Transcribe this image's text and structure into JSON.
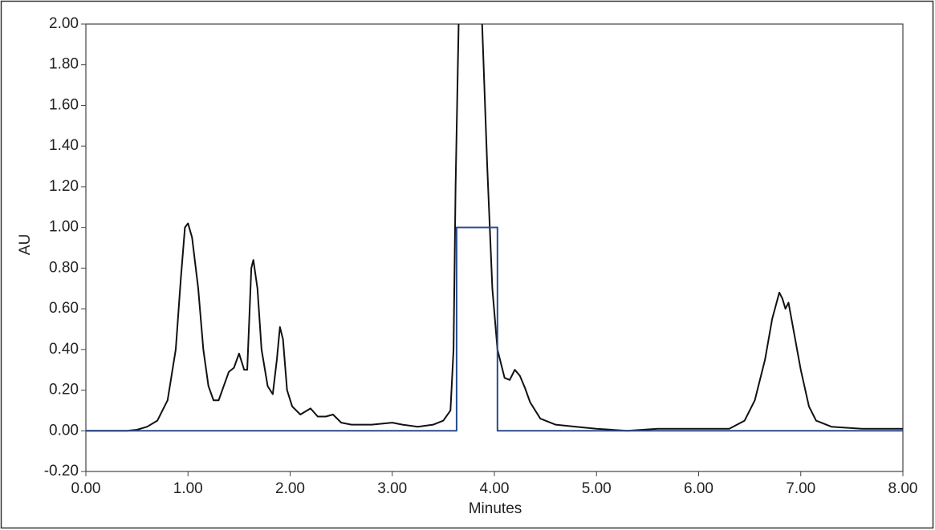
{
  "chart_data": {
    "type": "line",
    "xlabel": "Minutes",
    "ylabel": "AU",
    "xlim": [
      0,
      8
    ],
    "ylim": [
      -0.2,
      2.0
    ],
    "xticks": [
      {
        "value": 0,
        "label": "0.00"
      },
      {
        "value": 1,
        "label": "1.00"
      },
      {
        "value": 2,
        "label": "2.00"
      },
      {
        "value": 3,
        "label": "3.00"
      },
      {
        "value": 4,
        "label": "4.00"
      },
      {
        "value": 5,
        "label": "5.00"
      },
      {
        "value": 6,
        "label": "6.00"
      },
      {
        "value": 7,
        "label": "7.00"
      },
      {
        "value": 8,
        "label": "8.00"
      }
    ],
    "yticks": [
      {
        "value": -0.2,
        "label": "-0.20"
      },
      {
        "value": 0,
        "label": "0.00"
      },
      {
        "value": 0.2,
        "label": "0.20"
      },
      {
        "value": 0.4,
        "label": "0.40"
      },
      {
        "value": 0.6,
        "label": "0.60"
      },
      {
        "value": 0.8,
        "label": "0.80"
      },
      {
        "value": 1.0,
        "label": "1.00"
      },
      {
        "value": 1.2,
        "label": "1.20"
      },
      {
        "value": 1.4,
        "label": "1.40"
      },
      {
        "value": 1.6,
        "label": "1.60"
      },
      {
        "value": 1.8,
        "label": "1.80"
      },
      {
        "value": 2.0,
        "label": "2.00"
      }
    ],
    "grid": false,
    "series": [
      {
        "color": "#111111",
        "x": [
          0,
          0.4,
          0.5,
          0.6,
          0.7,
          0.8,
          0.88,
          0.93,
          0.97,
          1.0,
          1.04,
          1.1,
          1.15,
          1.2,
          1.25,
          1.3,
          1.35,
          1.4,
          1.45,
          1.5,
          1.55,
          1.58,
          1.62,
          1.64,
          1.68,
          1.72,
          1.78,
          1.83,
          1.87,
          1.9,
          1.93,
          1.97,
          2.02,
          2.1,
          2.2,
          2.27,
          2.35,
          2.42,
          2.5,
          2.6,
          2.8,
          3.0,
          3.1,
          3.25,
          3.4,
          3.5,
          3.57,
          3.6,
          3.62,
          3.65,
          3.76,
          3.88,
          3.93,
          3.98,
          4.03,
          4.1,
          4.15,
          4.2,
          4.25,
          4.3,
          4.35,
          4.45,
          4.6,
          4.8,
          5.0,
          5.3,
          5.6,
          6.0,
          6.3,
          6.45,
          6.55,
          6.65,
          6.72,
          6.79,
          6.82,
          6.85,
          6.88,
          6.92,
          7.0,
          7.08,
          7.15,
          7.3,
          7.6,
          8.0
        ],
        "values": [
          0,
          0,
          0.005,
          0.02,
          0.05,
          0.15,
          0.4,
          0.75,
          1.0,
          1.02,
          0.95,
          0.7,
          0.4,
          0.22,
          0.15,
          0.15,
          0.22,
          0.29,
          0.31,
          0.38,
          0.3,
          0.3,
          0.8,
          0.84,
          0.7,
          0.4,
          0.22,
          0.18,
          0.35,
          0.51,
          0.45,
          0.2,
          0.12,
          0.08,
          0.11,
          0.07,
          0.07,
          0.08,
          0.04,
          0.03,
          0.03,
          0.04,
          0.03,
          0.02,
          0.03,
          0.05,
          0.1,
          0.4,
          1.2,
          2.0,
          null,
          2.0,
          1.3,
          0.7,
          0.4,
          0.26,
          0.25,
          0.3,
          0.27,
          0.21,
          0.14,
          0.06,
          0.03,
          0.02,
          0.01,
          0,
          0.01,
          0.01,
          0.01,
          0.05,
          0.15,
          0.35,
          0.55,
          0.68,
          0.65,
          0.6,
          0.63,
          0.52,
          0.3,
          0.12,
          0.05,
          0.02,
          0.01,
          0.01
        ]
      },
      {
        "color": "#2b4a8e",
        "x": [
          0,
          3.63,
          3.63,
          4.03,
          4.03,
          8.0
        ],
        "values": [
          0,
          0,
          1.0,
          1.0,
          0,
          0
        ]
      }
    ]
  }
}
